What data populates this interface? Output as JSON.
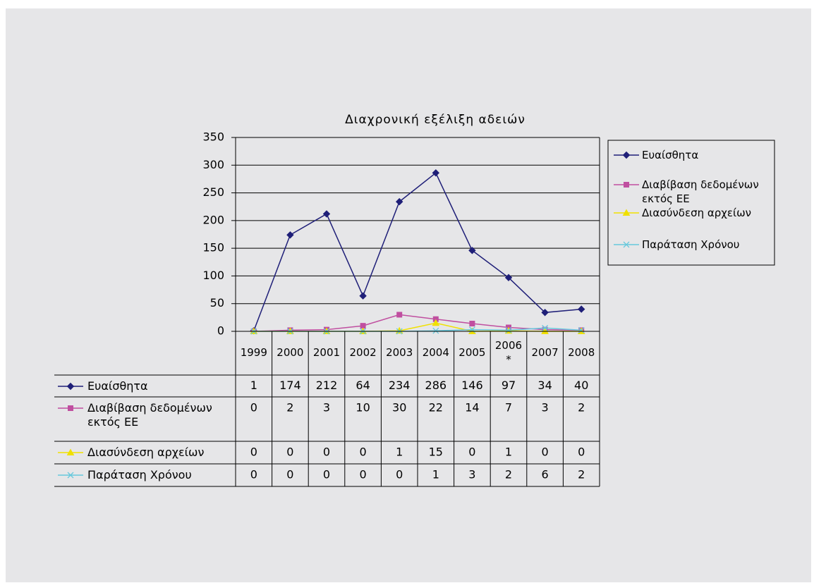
{
  "chart_data": {
    "type": "line",
    "title": "Διαχρονική εξέλιξη αδειών",
    "categories": [
      "1999",
      "2000",
      "2001",
      "2002",
      "2003",
      "2004",
      "2005",
      "2006*",
      "2007",
      "2008"
    ],
    "series": [
      {
        "name": "Ευαίσθητα",
        "color": "#1f1f78",
        "marker": "diamond",
        "values": [
          1,
          174,
          212,
          64,
          234,
          286,
          146,
          97,
          34,
          40
        ]
      },
      {
        "name": "Διαβίβαση δεδομένων εκτός ΕΕ",
        "color": "#c04fa0",
        "marker": "square",
        "values": [
          0,
          2,
          3,
          10,
          30,
          22,
          14,
          7,
          3,
          2
        ]
      },
      {
        "name": "Διασύνδεση αρχείων",
        "color": "#f0e000",
        "marker": "triangle",
        "values": [
          0,
          0,
          0,
          0,
          1,
          15,
          0,
          1,
          0,
          0
        ]
      },
      {
        "name": "Παράταση Χρόνου",
        "color": "#66c8dc",
        "marker": "x",
        "values": [
          0,
          0,
          0,
          0,
          0,
          1,
          3,
          2,
          6,
          2
        ]
      }
    ],
    "ylim": [
      0,
      350
    ],
    "yticks": [
      0,
      50,
      100,
      150,
      200,
      250,
      300,
      350
    ],
    "grid": true,
    "legend": "right",
    "data_table": true
  }
}
